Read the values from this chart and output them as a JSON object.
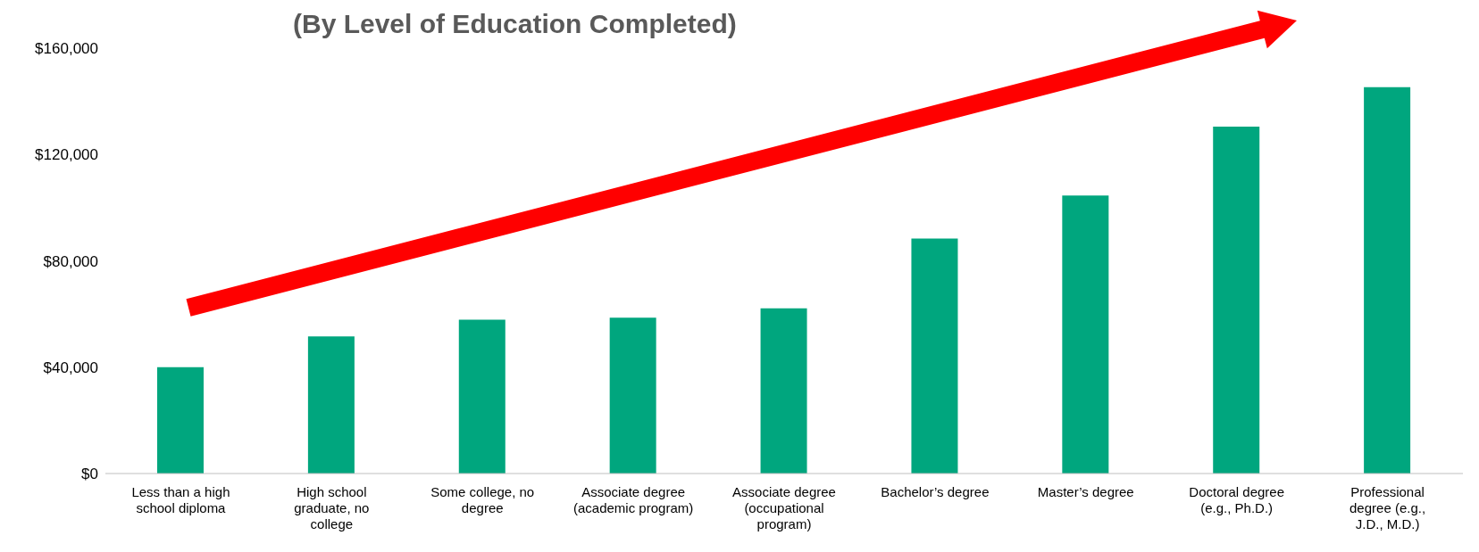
{
  "chart_data": {
    "type": "bar",
    "title": "(By Level of Education Completed)",
    "categories": [
      "Less than a high school diploma",
      "High school graduate, no college",
      "Some college, no degree",
      "Associate degree (academic program)",
      "Associate degree (occupational program)",
      "Bachelor’s degree",
      "Master’s degree",
      "Doctoral degree (e.g., Ph.D.)",
      "Professional degree (e.g., J.D., M.D.)"
    ],
    "values": [
      40000,
      51600,
      57900,
      58600,
      62100,
      88400,
      104600,
      130500,
      145300
    ],
    "color": "#00a67e",
    "ylim": [
      0,
      160000
    ],
    "yticks": [
      {
        "value": 0,
        "label": "$0"
      },
      {
        "value": 40000,
        "label": "$40,000"
      },
      {
        "value": 80000,
        "label": "$80,000"
      },
      {
        "value": 120000,
        "label": "$120,000"
      },
      {
        "value": 160000,
        "label": "$160,000"
      }
    ],
    "grid": false
  }
}
